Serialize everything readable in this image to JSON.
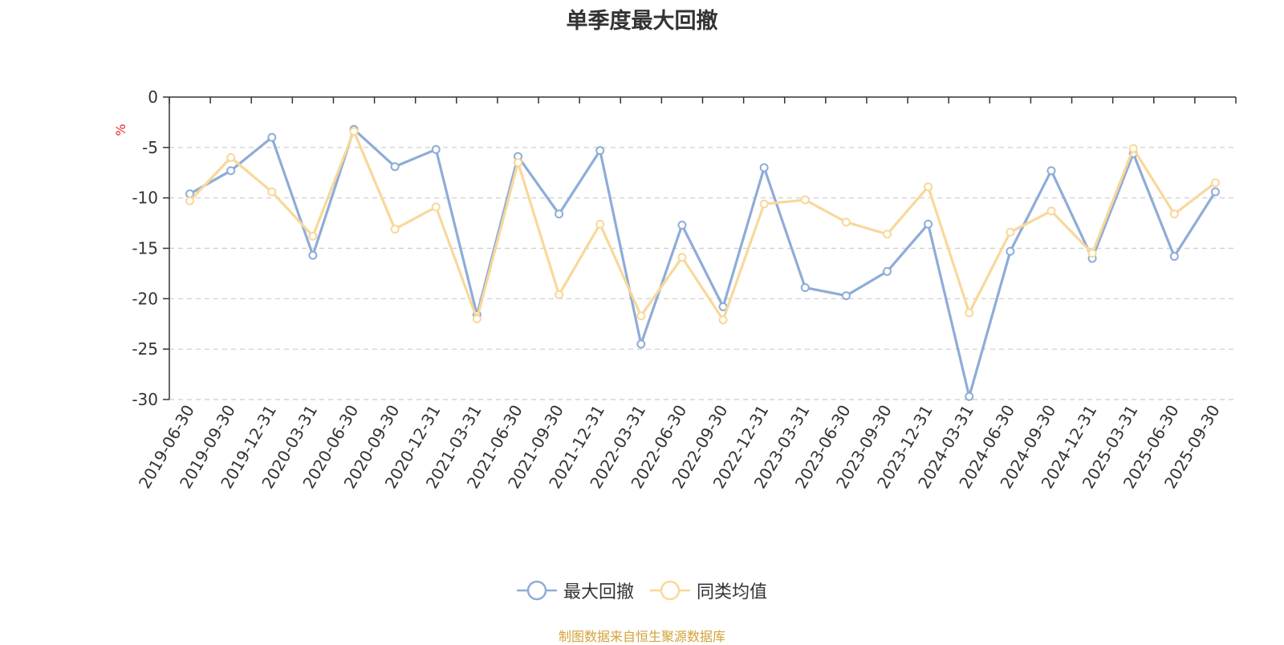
{
  "chart_data": {
    "type": "line",
    "title": "单季度最大回撤",
    "ylabel": "%",
    "ylim": [
      -30,
      0
    ],
    "yticks": [
      0,
      -5,
      -10,
      -15,
      -20,
      -25,
      -30
    ],
    "grid": true,
    "legend_position": "bottom",
    "categories": [
      "2019-06-30",
      "2019-09-30",
      "2019-12-31",
      "2020-03-31",
      "2020-06-30",
      "2020-09-30",
      "2020-12-31",
      "2021-03-31",
      "2021-06-30",
      "2021-09-30",
      "2021-12-31",
      "2022-03-31",
      "2022-06-30",
      "2022-09-30",
      "2022-12-31",
      "2023-03-31",
      "2023-06-30",
      "2023-09-30",
      "2023-12-31",
      "2024-03-31",
      "2024-06-30",
      "2024-09-30",
      "2024-12-31",
      "2025-03-31",
      "2025-06-30",
      "2025-09-30"
    ],
    "series": [
      {
        "name": "最大回撤",
        "color": "#8eacd8",
        "values": [
          -9.6,
          -7.3,
          -4.0,
          -15.7,
          -3.2,
          -6.9,
          -5.2,
          -21.6,
          -5.9,
          -11.6,
          -5.3,
          -24.5,
          -12.7,
          -20.8,
          -7.0,
          -18.9,
          -19.7,
          -17.3,
          -12.6,
          -29.7,
          -15.3,
          -7.3,
          -16.0,
          -5.6,
          -15.8,
          -9.4
        ]
      },
      {
        "name": "同类均值",
        "color": "#f8d89a",
        "values": [
          -10.3,
          -6.0,
          -9.4,
          -13.8,
          -3.4,
          -13.1,
          -10.9,
          -22.0,
          -6.5,
          -19.6,
          -12.6,
          -21.7,
          -15.9,
          -22.1,
          -10.6,
          -10.2,
          -12.4,
          -13.6,
          -8.9,
          -21.4,
          -13.4,
          -11.3,
          -15.5,
          -5.1,
          -11.6,
          -8.5
        ]
      }
    ]
  },
  "source_text": "制图数据来自恒生聚源数据库"
}
